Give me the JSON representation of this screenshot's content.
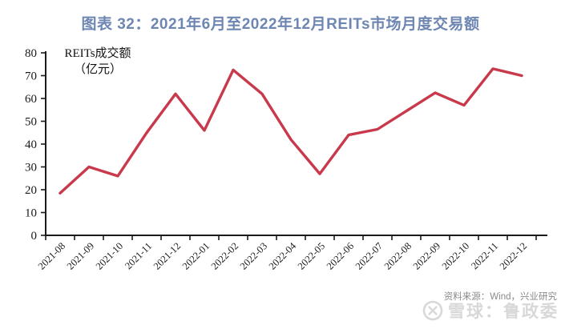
{
  "title": "图表 32：2021年6月至2022年12月REITs市场月度交易额",
  "legend": {
    "line1": "REITs成交额",
    "line2": "（亿元）"
  },
  "chart_data": {
    "type": "line",
    "title": "图表 32：2021年6月至2022年12月REITs市场月度交易额",
    "series_label": "REITs成交额",
    "unit": "亿元",
    "ylabel": "REITs成交额（亿元）",
    "categories": [
      "2021-08",
      "2021-09",
      "2021-10",
      "2021-11",
      "2021-12",
      "2022-01",
      "2022-02",
      "2022-03",
      "2022-04",
      "2022-05",
      "2022-06",
      "2022-07",
      "2022-08",
      "2022-09",
      "2022-10",
      "2022-11",
      "2022-12"
    ],
    "values": [
      18.5,
      30,
      26,
      45,
      62,
      46,
      72.5,
      62,
      42,
      27,
      44,
      46.5,
      54.5,
      62.5,
      57,
      73,
      70
    ],
    "ylim": [
      0,
      80
    ],
    "ytick_step": 10,
    "grid": false,
    "legend_position": "top-left-inside",
    "line_color": "#C9394C"
  },
  "footer": {
    "source": "资料来源：Wind，兴业研究",
    "watermark": "雪球：鲁政委",
    "watermark_icon": "snowball-logo"
  },
  "colors": {
    "title": "#6E86B2",
    "line": "#C9394C",
    "axis": "#1A1A1A",
    "source_text": "#8A8A8A",
    "watermark": "#D8D8D8"
  }
}
